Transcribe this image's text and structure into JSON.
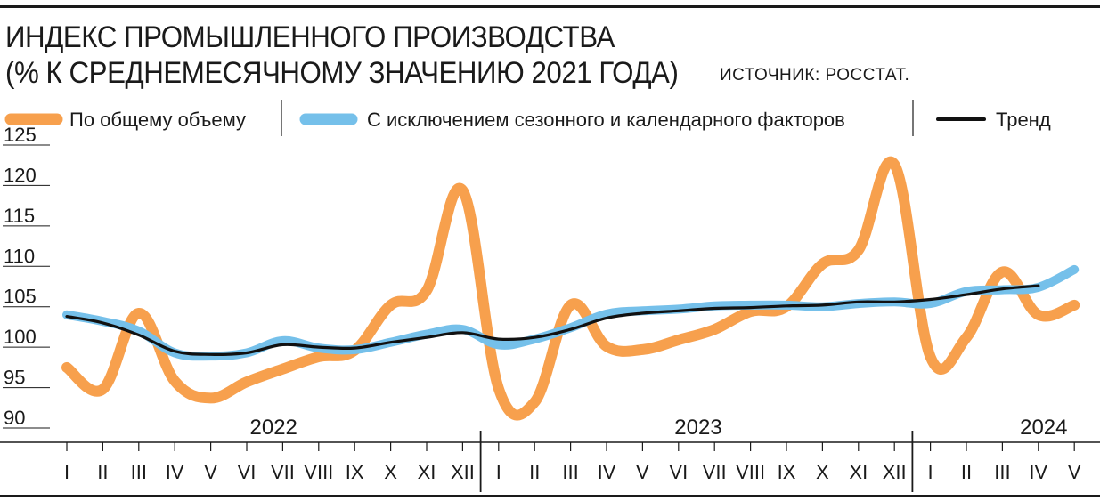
{
  "header": {
    "title_line1": "ИНДЕКС ПРОМЫШЛЕННОГО ПРОИЗВОДСТВА",
    "title_line2": "(% К СРЕДНЕМЕСЯЧНОМУ ЗНАЧЕНИЮ 2021 ГОДА)",
    "source": "ИСТОЧНИК: РОССТАТ."
  },
  "legend": [
    {
      "label": "По общему объему",
      "color": "#F7A04D"
    },
    {
      "label": "С исключением сезонного и календарного факторов",
      "color": "#75C0EA"
    },
    {
      "label": "Тренд",
      "color": "#111111"
    }
  ],
  "chart_data": {
    "type": "line",
    "title": "ИНДЕКС ПРОМЫШЛЕННОГО ПРОИЗВОДСТВА (% К СРЕДНЕМЕСЯЧНОМУ ЗНАЧЕНИЮ 2021 ГОДА)",
    "ylim": [
      90,
      125
    ],
    "yticks": [
      90,
      95,
      100,
      105,
      110,
      115,
      120,
      125
    ],
    "years": [
      {
        "label": "2022",
        "months": 12
      },
      {
        "label": "2023",
        "months": 12
      },
      {
        "label": "2024",
        "months": 5
      }
    ],
    "categories": [
      "I",
      "II",
      "III",
      "IV",
      "V",
      "VI",
      "VII",
      "VIII",
      "IX",
      "X",
      "XI",
      "XII",
      "I",
      "II",
      "III",
      "IV",
      "V",
      "VI",
      "VII",
      "VIII",
      "IX",
      "X",
      "XI",
      "XII",
      "I",
      "II",
      "III",
      "IV",
      "V"
    ],
    "series": [
      {
        "name": "По общему объему",
        "color": "#F7A04D",
        "values": [
          97.5,
          94.8,
          104.2,
          95.8,
          93.7,
          95.7,
          97.3,
          98.8,
          99.6,
          105.2,
          107.0,
          119.4,
          94.9,
          93.2,
          105.2,
          100.1,
          99.7,
          100.9,
          102.2,
          104.4,
          105.0,
          110.3,
          112.0,
          122.6,
          98.8,
          101.2,
          109.3,
          104.0,
          105.2
        ]
      },
      {
        "name": "С исключением сезонного и календарного факторов",
        "color": "#75C0EA",
        "values": [
          104.0,
          103.2,
          102.0,
          99.3,
          98.9,
          99.3,
          100.8,
          99.9,
          99.7,
          100.6,
          101.6,
          102.2,
          100.3,
          101.0,
          102.4,
          104.1,
          104.5,
          104.7,
          105.1,
          105.2,
          105.2,
          105.0,
          105.4,
          105.6,
          105.4,
          106.9,
          107.1,
          107.4,
          109.6
        ]
      },
      {
        "name": "Тренд",
        "color": "#111111",
        "values": [
          103.8,
          103.0,
          101.5,
          99.5,
          99.1,
          99.3,
          100.3,
          100.0,
          99.9,
          100.6,
          101.2,
          101.8,
          101.0,
          101.2,
          102.2,
          103.6,
          104.2,
          104.5,
          104.8,
          104.9,
          105.1,
          105.2,
          105.6,
          105.6,
          105.9,
          106.5,
          107.2,
          107.6,
          null
        ]
      }
    ]
  }
}
